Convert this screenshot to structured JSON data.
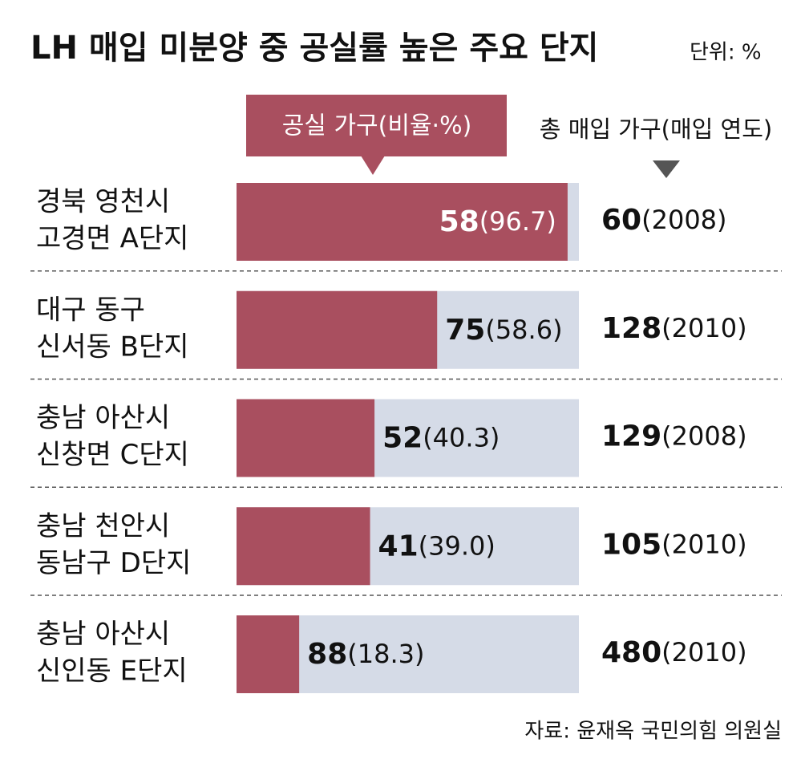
{
  "chart_data": {
    "type": "bar",
    "title": "LH 매입 미분양 중 공실률 높은 주요 단지",
    "unit": "단위: %",
    "legend": {
      "vacant": "공실 가구(비율·%)",
      "total": "총 매입 가구(매입 연도)"
    },
    "categories": [
      [
        "경북 영천시",
        "고경면 A단지"
      ],
      [
        "대구 동구",
        "신서동 B단지"
      ],
      [
        "충남 아산시",
        "신창면 C단지"
      ],
      [
        "충남 천안시",
        "동남구 D단지"
      ],
      [
        "충남 아산시",
        "신인동 E단지"
      ]
    ],
    "vacant_counts": [
      58,
      75,
      52,
      41,
      88
    ],
    "ratio": {
      "values": [
        96.7,
        58.6,
        40.3,
        39.0,
        18.3
      ],
      "value_labels": [
        "(96.7)",
        "(58.6)",
        "(40.3)",
        "(39.0)",
        "(18.3)"
      ],
      "color": "#a94f5f"
    },
    "totals": [
      60,
      128,
      129,
      105,
      480
    ],
    "year_labels": [
      "(2008)",
      "(2010)",
      "(2008)",
      "(2010)",
      "(2010)"
    ],
    "xlim": [
      0,
      100
    ],
    "track_color": "#d5dbe7",
    "source": "자료: 윤재옥 국민의힘 의원실"
  }
}
